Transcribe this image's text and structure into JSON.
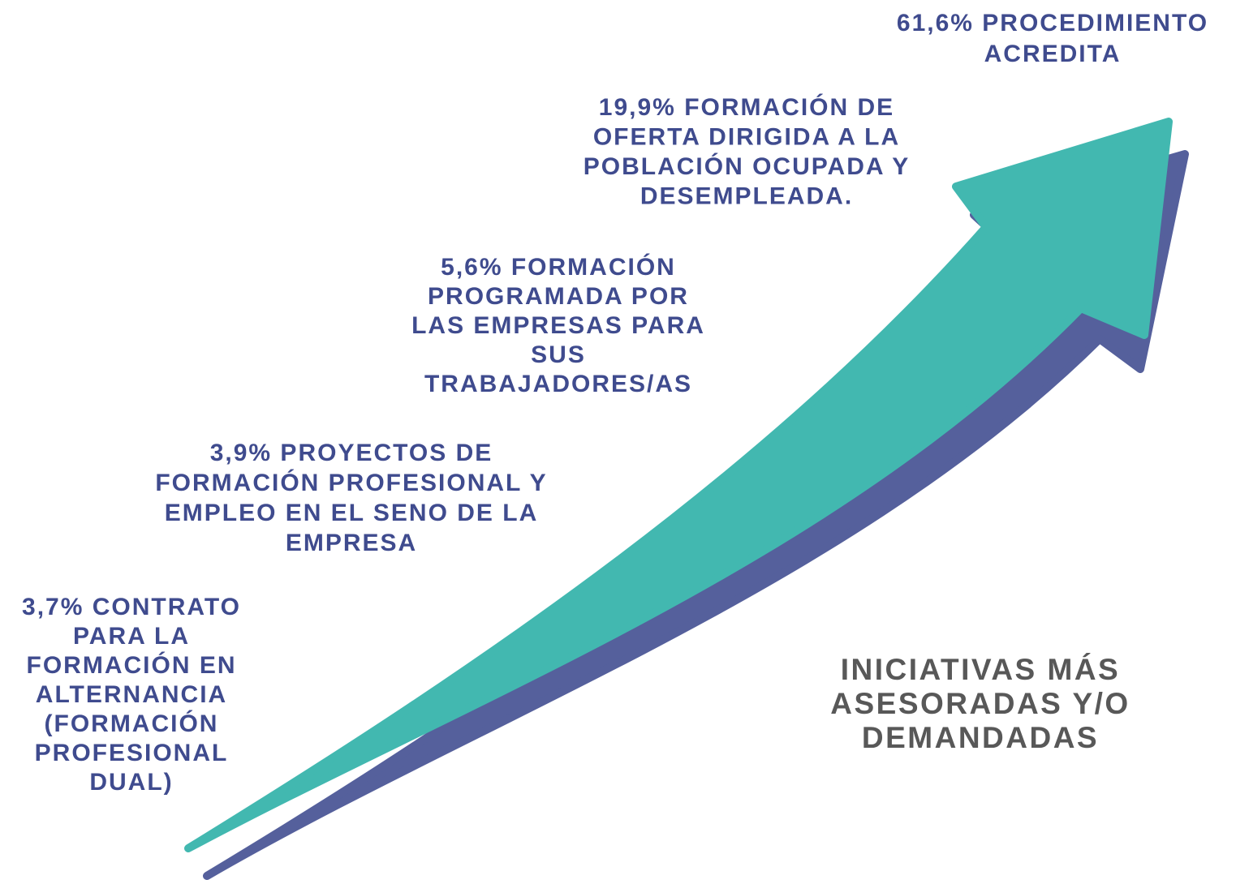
{
  "items": [
    {
      "lines": [
        "61,6% PROCEDIMIENTO",
        "ACREDITA"
      ]
    },
    {
      "lines": [
        "19,9%  FORMACIÓN DE",
        "OFERTA DIRIGIDA A LA",
        "POBLACIÓN OCUPADA Y",
        "DESEMPLEADA."
      ]
    },
    {
      "lines": [
        "5,6% FORMACIÓN",
        "PROGRAMADA POR",
        "LAS EMPRESAS PARA",
        "SUS",
        "TRABAJADORES/AS"
      ]
    },
    {
      "lines": [
        "3,9% PROYECTOS DE",
        "FORMACIÓN PROFESIONAL Y",
        "EMPLEO EN EL SENO DE LA",
        "EMPRESA"
      ]
    },
    {
      "lines": [
        "3,7% CONTRATO",
        "PARA LA",
        "FORMACIÓN EN",
        "ALTERNANCIA",
        "(FORMACIÓN",
        "PROFESIONAL",
        "DUAL)"
      ]
    }
  ],
  "heading": {
    "lines": [
      "INICIATIVAS MÁS",
      "ASESORADAS Y/O",
      "DEMANDADAS"
    ]
  }
}
